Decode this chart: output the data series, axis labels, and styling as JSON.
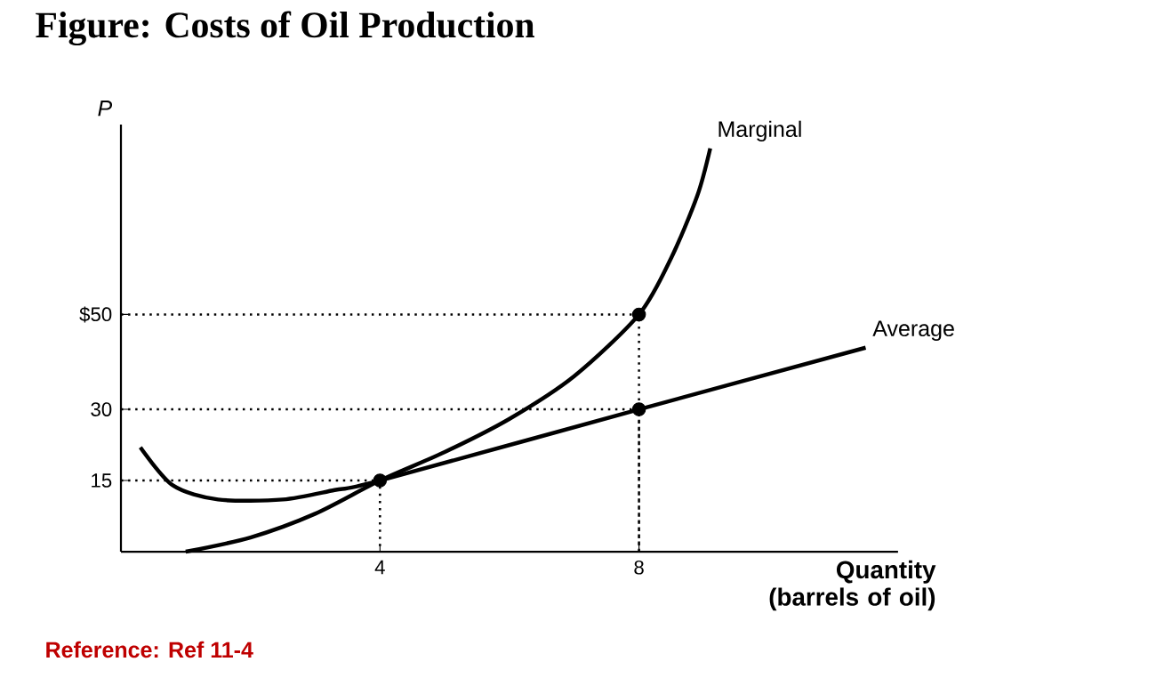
{
  "chart_data": {
    "type": "line",
    "title": "Figure: Costs of Oil Production",
    "xlabel": "Quantity (barrels of oil)",
    "ylabel": "P",
    "xlim": [
      0,
      12
    ],
    "ylim": [
      0,
      90
    ],
    "xticks": [
      4,
      8
    ],
    "yticks": [
      15,
      30,
      {
        "value": 50,
        "label": "$50"
      }
    ],
    "grid": false,
    "legend": false,
    "annotations": [
      "Reference: Ref 11-4"
    ],
    "series": [
      {
        "name": "Marginal",
        "color": "#000000",
        "x": [
          1,
          2,
          3,
          4,
          5,
          6,
          7,
          8,
          8.5,
          8.9,
          9.1
        ],
        "values": [
          0,
          3,
          8,
          15,
          21,
          28,
          37,
          50,
          62,
          75,
          85
        ]
      },
      {
        "name": "Average",
        "color": "#000000",
        "x": [
          0.3,
          0.8,
          1.5,
          2.5,
          3.3,
          4,
          8,
          11.5
        ],
        "values": [
          22,
          14,
          11,
          11,
          13,
          15,
          30,
          43
        ]
      },
      {
        "type": "line",
        "line_style": "dotted",
        "color": "#000000",
        "x": [
          0,
          8,
          8
        ],
        "values": [
          50,
          50,
          0
        ]
      },
      {
        "type": "line",
        "line_style": "dotted",
        "color": "#000000",
        "x": [
          0,
          8,
          8
        ],
        "values": [
          30,
          30,
          0
        ]
      },
      {
        "type": "line",
        "line_style": "dotted",
        "color": "#000000",
        "x": [
          0,
          4,
          4
        ],
        "values": [
          15,
          15,
          0
        ]
      },
      {
        "type": "scatter",
        "color": "#000000",
        "x": [
          4,
          8,
          8
        ],
        "values": [
          15,
          30,
          50
        ]
      }
    ]
  }
}
